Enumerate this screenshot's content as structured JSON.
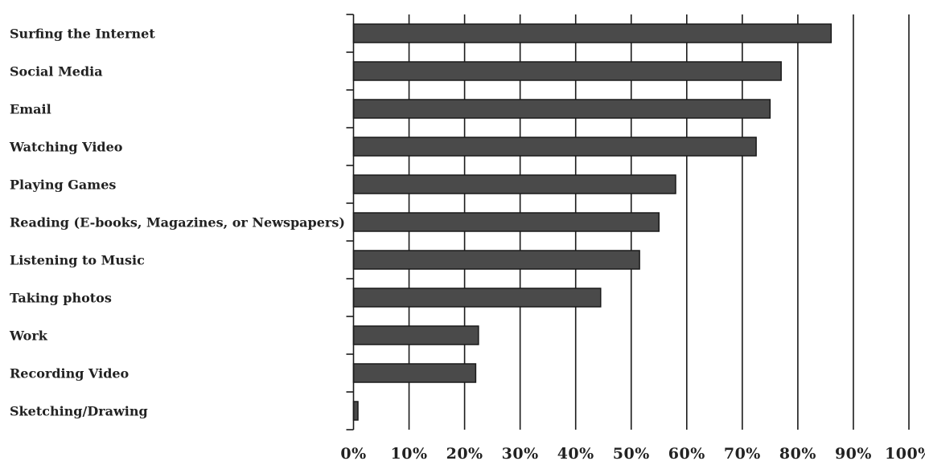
{
  "chart_data": {
    "type": "bar",
    "orientation": "horizontal",
    "categories": [
      "Surfing the Internet",
      "Social Media",
      "Email",
      "Watching Video",
      "Playing Games",
      "Reading (E-books, Magazines, or Newspapers)",
      "Listening to Music",
      "Taking photos",
      "Work",
      "Recording Video",
      "Sketching/Drawing"
    ],
    "values": [
      86,
      77,
      75,
      72.5,
      58,
      55,
      51.5,
      44.5,
      22.5,
      22,
      0.8
    ],
    "xlim": [
      0,
      100
    ],
    "x_ticks": [
      0,
      10,
      20,
      30,
      40,
      50,
      60,
      70,
      80,
      90,
      100
    ],
    "x_tick_labels": [
      "0%",
      "10%",
      "20%",
      "30%",
      "40%",
      "50%",
      "60%",
      "70%",
      "80%",
      "90%",
      "100%"
    ],
    "title": "",
    "xlabel": "",
    "ylabel": "",
    "grid": "vertical",
    "legend": "none",
    "colors": {
      "bar_fill": "#4a4a4a",
      "bar_stroke": "#1a1a1a",
      "grid": "#1a1a1a",
      "axis": "#1a1a1a"
    }
  }
}
